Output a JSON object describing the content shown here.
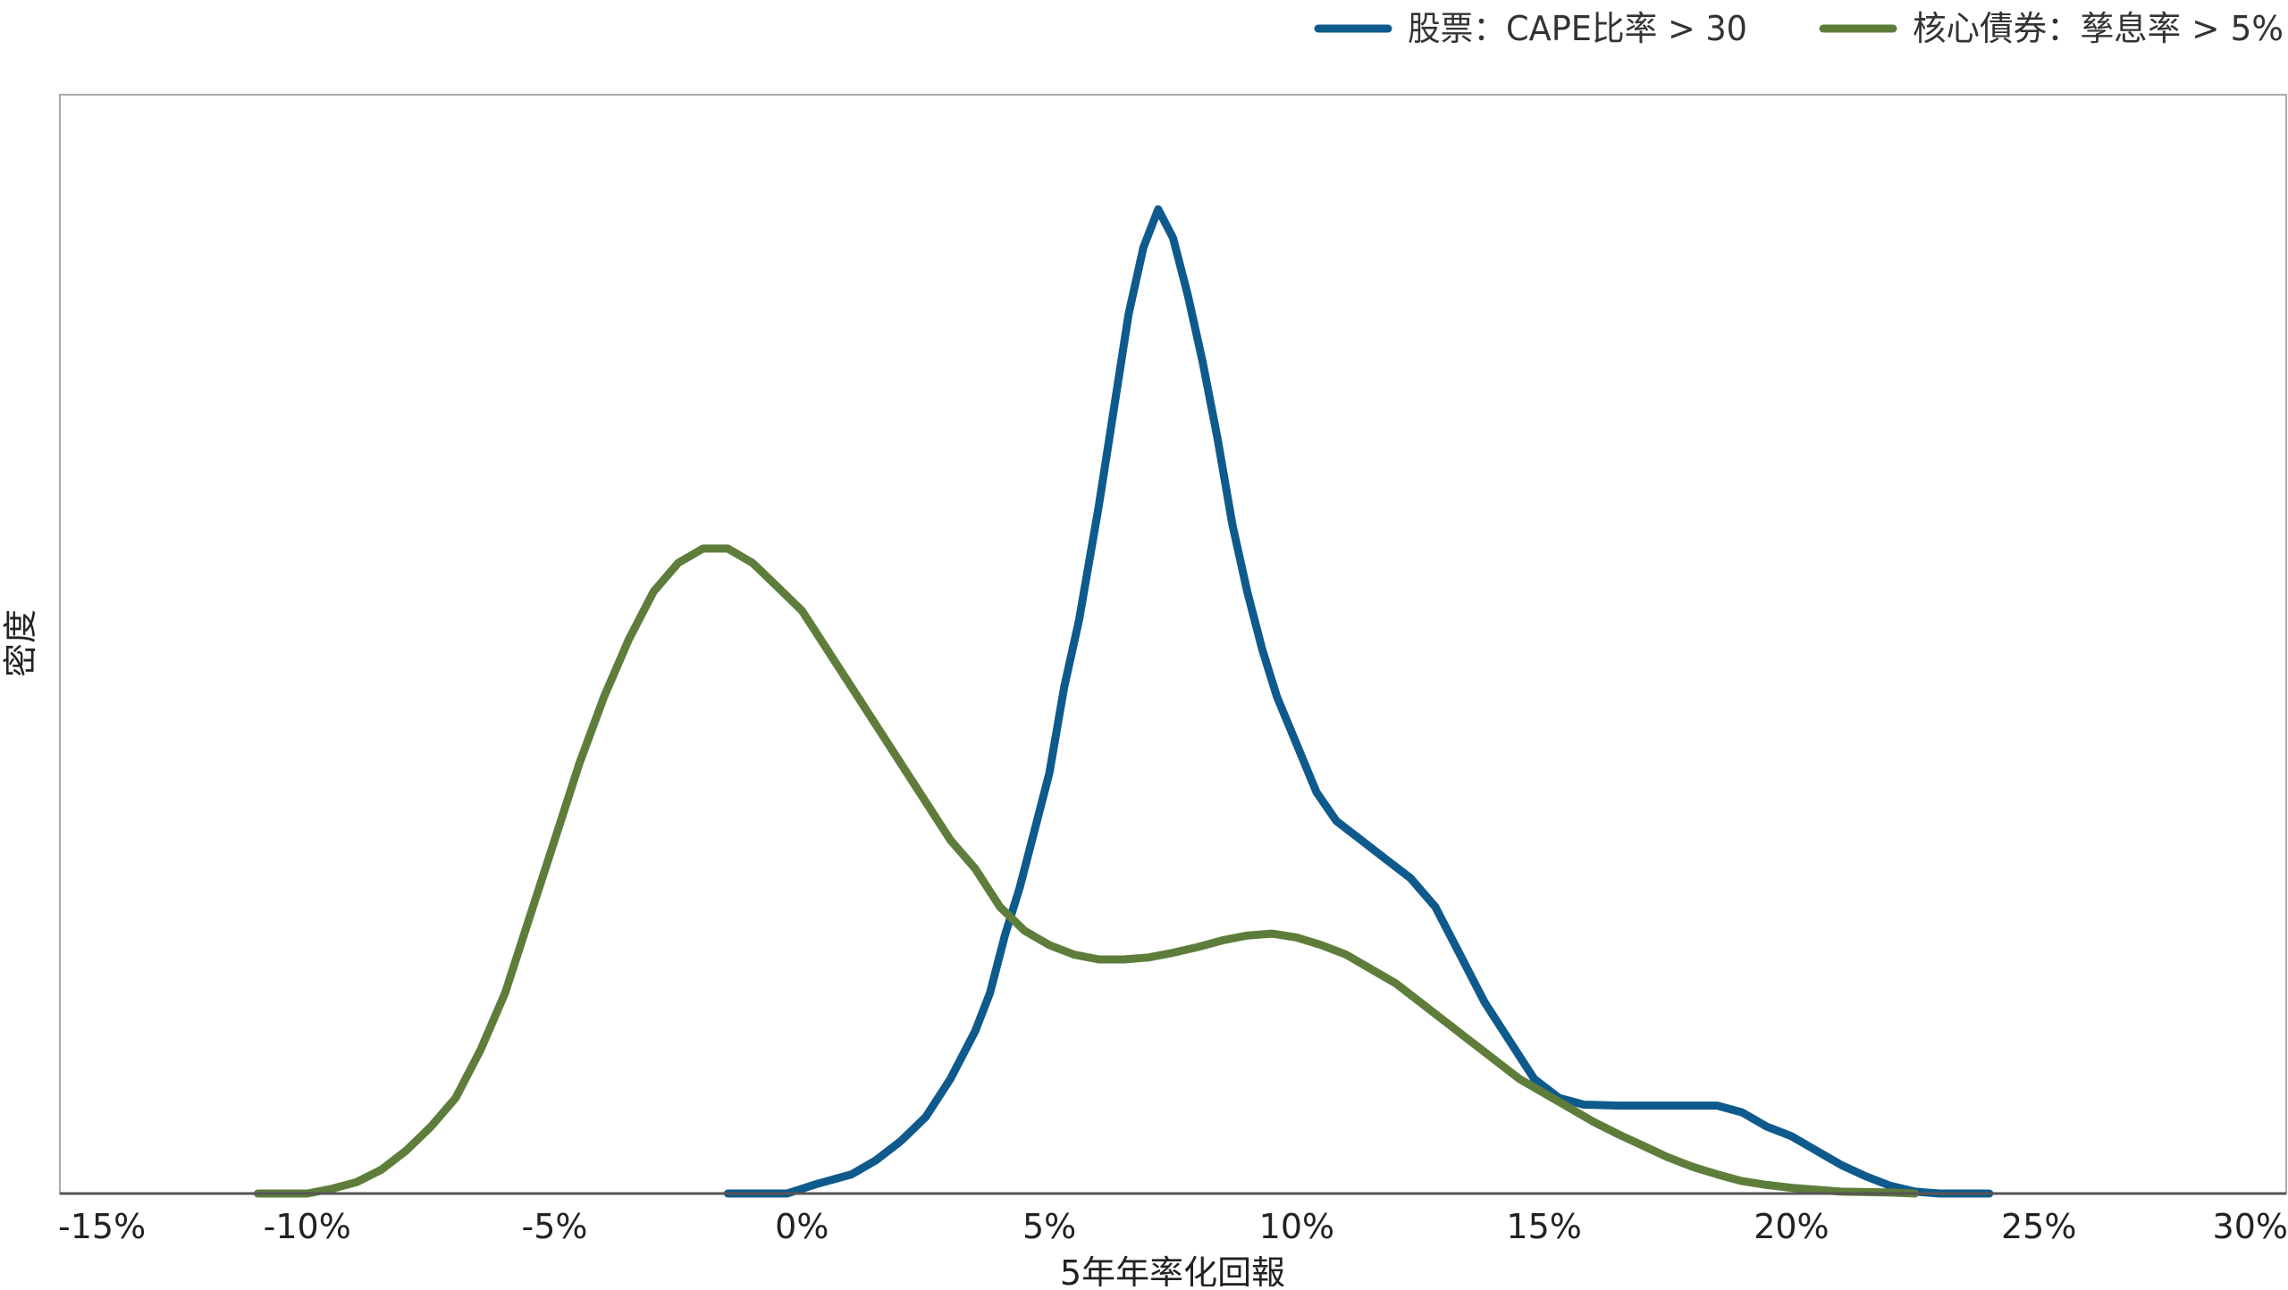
{
  "chart_data": {
    "type": "line",
    "title": "",
    "xlabel": "5年年率化回報",
    "ylabel": "密度",
    "xlim": [
      -15,
      30
    ],
    "ylim": [
      0,
      1.15
    ],
    "x_ticks": [
      {
        "value": -15,
        "label": "-15%"
      },
      {
        "value": -10,
        "label": "-10%"
      },
      {
        "value": -5,
        "label": "-5%"
      },
      {
        "value": 0,
        "label": "0%"
      },
      {
        "value": 5,
        "label": "5%"
      },
      {
        "value": 10,
        "label": "10%"
      },
      {
        "value": 15,
        "label": "15%"
      },
      {
        "value": 20,
        "label": "20%"
      },
      {
        "value": 25,
        "label": "25%"
      },
      {
        "value": 30,
        "label": "30%"
      }
    ],
    "grid": false,
    "legend": "top-right",
    "series": [
      {
        "name": "股票：CAPE比率 > 30",
        "color": "#0f5a8c",
        "points": [
          [
            -1.5,
            0
          ],
          [
            -0.3,
            0
          ],
          [
            0.3,
            0.01
          ],
          [
            1.0,
            0.02
          ],
          [
            1.5,
            0.035
          ],
          [
            2.0,
            0.055
          ],
          [
            2.5,
            0.08
          ],
          [
            3.0,
            0.12
          ],
          [
            3.5,
            0.17
          ],
          [
            3.8,
            0.21
          ],
          [
            4.1,
            0.27
          ],
          [
            4.4,
            0.32
          ],
          [
            4.7,
            0.38
          ],
          [
            5.0,
            0.44
          ],
          [
            5.3,
            0.53
          ],
          [
            5.6,
            0.6
          ],
          [
            6.0,
            0.72
          ],
          [
            6.3,
            0.82
          ],
          [
            6.6,
            0.92
          ],
          [
            6.9,
            0.99
          ],
          [
            7.2,
            1.03
          ],
          [
            7.5,
            1.0
          ],
          [
            7.8,
            0.94
          ],
          [
            8.1,
            0.87
          ],
          [
            8.4,
            0.79
          ],
          [
            8.7,
            0.7
          ],
          [
            9.0,
            0.63
          ],
          [
            9.3,
            0.57
          ],
          [
            9.6,
            0.52
          ],
          [
            10.0,
            0.47
          ],
          [
            10.4,
            0.42
          ],
          [
            10.8,
            0.39
          ],
          [
            11.3,
            0.37
          ],
          [
            11.8,
            0.35
          ],
          [
            12.3,
            0.33
          ],
          [
            12.8,
            0.3
          ],
          [
            13.3,
            0.25
          ],
          [
            13.8,
            0.2
          ],
          [
            14.3,
            0.16
          ],
          [
            14.8,
            0.12
          ],
          [
            15.3,
            0.1
          ],
          [
            15.8,
            0.093
          ],
          [
            16.5,
            0.092
          ],
          [
            17.5,
            0.092
          ],
          [
            18.5,
            0.092
          ],
          [
            19.0,
            0.085
          ],
          [
            19.5,
            0.07
          ],
          [
            20.0,
            0.06
          ],
          [
            20.5,
            0.045
          ],
          [
            21.0,
            0.03
          ],
          [
            21.5,
            0.018
          ],
          [
            22.0,
            0.008
          ],
          [
            22.5,
            0.002
          ],
          [
            23.0,
            0
          ],
          [
            24.0,
            0
          ]
        ]
      },
      {
        "name": "核心債券：孳息率 > 5%",
        "color": "#5e7d3a",
        "points": [
          [
            -11.0,
            0
          ],
          [
            -10.0,
            0
          ],
          [
            -9.5,
            0.005
          ],
          [
            -9.0,
            0.012
          ],
          [
            -8.5,
            0.025
          ],
          [
            -8.0,
            0.045
          ],
          [
            -7.5,
            0.07
          ],
          [
            -7.0,
            0.1
          ],
          [
            -6.5,
            0.15
          ],
          [
            -6.0,
            0.21
          ],
          [
            -5.5,
            0.29
          ],
          [
            -5.0,
            0.37
          ],
          [
            -4.5,
            0.45
          ],
          [
            -4.0,
            0.52
          ],
          [
            -3.5,
            0.58
          ],
          [
            -3.0,
            0.63
          ],
          [
            -2.5,
            0.66
          ],
          [
            -2.0,
            0.675
          ],
          [
            -1.5,
            0.675
          ],
          [
            -1.0,
            0.66
          ],
          [
            -0.5,
            0.635
          ],
          [
            0,
            0.61
          ],
          [
            0.5,
            0.57
          ],
          [
            1.0,
            0.53
          ],
          [
            1.5,
            0.49
          ],
          [
            2.0,
            0.45
          ],
          [
            2.5,
            0.41
          ],
          [
            3.0,
            0.37
          ],
          [
            3.5,
            0.34
          ],
          [
            4.0,
            0.3
          ],
          [
            4.5,
            0.275
          ],
          [
            5.0,
            0.26
          ],
          [
            5.5,
            0.25
          ],
          [
            6.0,
            0.245
          ],
          [
            6.5,
            0.245
          ],
          [
            7.0,
            0.247
          ],
          [
            7.5,
            0.252
          ],
          [
            8.0,
            0.258
          ],
          [
            8.5,
            0.265
          ],
          [
            9.0,
            0.27
          ],
          [
            9.5,
            0.272
          ],
          [
            10.0,
            0.268
          ],
          [
            10.5,
            0.26
          ],
          [
            11.0,
            0.25
          ],
          [
            11.5,
            0.235
          ],
          [
            12.0,
            0.22
          ],
          [
            12.5,
            0.2
          ],
          [
            13.0,
            0.18
          ],
          [
            13.5,
            0.16
          ],
          [
            14.0,
            0.14
          ],
          [
            14.5,
            0.12
          ],
          [
            15.0,
            0.105
          ],
          [
            15.5,
            0.09
          ],
          [
            16.0,
            0.075
          ],
          [
            16.5,
            0.062
          ],
          [
            17.0,
            0.05
          ],
          [
            17.5,
            0.038
          ],
          [
            18.0,
            0.028
          ],
          [
            18.5,
            0.02
          ],
          [
            19.0,
            0.013
          ],
          [
            19.5,
            0.009
          ],
          [
            20.0,
            0.006
          ],
          [
            20.5,
            0.004
          ],
          [
            21.0,
            0.002
          ],
          [
            22.0,
            0.001
          ],
          [
            22.5,
            0
          ]
        ]
      }
    ]
  }
}
